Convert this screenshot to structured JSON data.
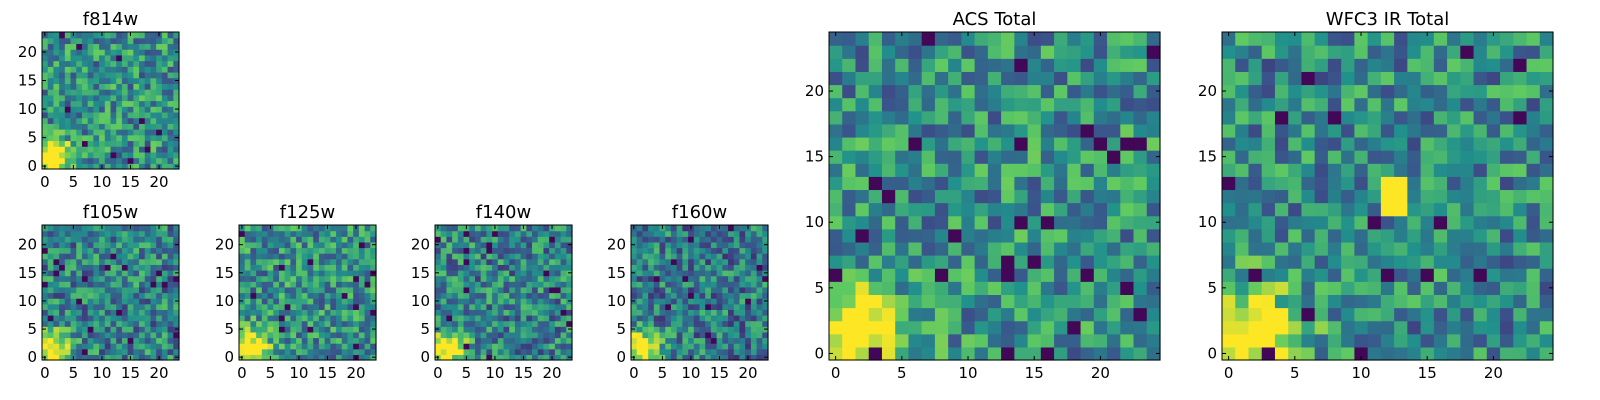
{
  "colors": {
    "colormap": "viridis",
    "colormap_stops": [
      "#440154",
      "#3b528b",
      "#21918c",
      "#5ec962",
      "#fde725"
    ],
    "axes_frame": "#000000",
    "background": "#ffffff"
  },
  "chart_data": [
    {
      "panel": "f814w",
      "type": "heatmap",
      "title": "f814w",
      "grid_size": 24,
      "xlim": [
        0,
        24
      ],
      "ylim": [
        0,
        24
      ],
      "xticks": [
        0,
        5,
        10,
        15,
        20
      ],
      "yticks": [
        0,
        5,
        10,
        15,
        20
      ],
      "colormap": "viridis",
      "bright_region": "lower-left",
      "background_level": 0.5,
      "seed": 11
    },
    {
      "panel": "f105w",
      "type": "heatmap",
      "title": "f105w",
      "grid_size": 24,
      "xlim": [
        0,
        24
      ],
      "ylim": [
        0,
        24
      ],
      "xticks": [
        0,
        5,
        10,
        15,
        20
      ],
      "yticks": [
        0,
        5,
        10,
        15,
        20
      ],
      "colormap": "viridis",
      "bright_region": "lower-left",
      "background_level": 0.45,
      "seed": 23
    },
    {
      "panel": "f125w",
      "type": "heatmap",
      "title": "f125w",
      "grid_size": 24,
      "xlim": [
        0,
        24
      ],
      "ylim": [
        0,
        24
      ],
      "xticks": [
        0,
        5,
        10,
        15,
        20
      ],
      "yticks": [
        0,
        5,
        10,
        15,
        20
      ],
      "colormap": "viridis",
      "bright_region": "lower-left",
      "background_level": 0.5,
      "seed": 37
    },
    {
      "panel": "f140w",
      "type": "heatmap",
      "title": "f140w",
      "grid_size": 24,
      "xlim": [
        0,
        24
      ],
      "ylim": [
        0,
        24
      ],
      "xticks": [
        0,
        5,
        10,
        15,
        20
      ],
      "yticks": [
        0,
        5,
        10,
        15,
        20
      ],
      "colormap": "viridis",
      "bright_region": "lower-left",
      "background_level": 0.45,
      "seed": 41
    },
    {
      "panel": "f160w",
      "type": "heatmap",
      "title": "f160w",
      "grid_size": 24,
      "xlim": [
        0,
        24
      ],
      "ylim": [
        0,
        24
      ],
      "xticks": [
        0,
        5,
        10,
        15,
        20
      ],
      "yticks": [
        0,
        5,
        10,
        15,
        20
      ],
      "colormap": "viridis",
      "bright_region": "lower-left",
      "background_level": 0.42,
      "seed": 53
    },
    {
      "panel": "acs_total",
      "type": "heatmap",
      "title": "ACS Total",
      "grid_size": 25,
      "xlim": [
        0,
        25
      ],
      "ylim": [
        0,
        25
      ],
      "xticks": [
        0,
        5,
        10,
        15,
        20
      ],
      "yticks": [
        0,
        5,
        10,
        15,
        20
      ],
      "colormap": "viridis",
      "bright_region": "lower-left",
      "background_level": 0.5,
      "seed": 67
    },
    {
      "panel": "wfc3_ir_total",
      "type": "heatmap",
      "title": "WFC3 IR Total",
      "grid_size": 25,
      "xlim": [
        0,
        25
      ],
      "ylim": [
        0,
        25
      ],
      "xticks": [
        0,
        5,
        10,
        15,
        20
      ],
      "yticks": [
        0,
        5,
        10,
        15,
        20
      ],
      "colormap": "viridis",
      "bright_region": "lower-left",
      "background_level": 0.48,
      "seed": 79,
      "bright_patch": {
        "x": [
          12,
          14
        ],
        "y": [
          11,
          14
        ]
      }
    }
  ]
}
